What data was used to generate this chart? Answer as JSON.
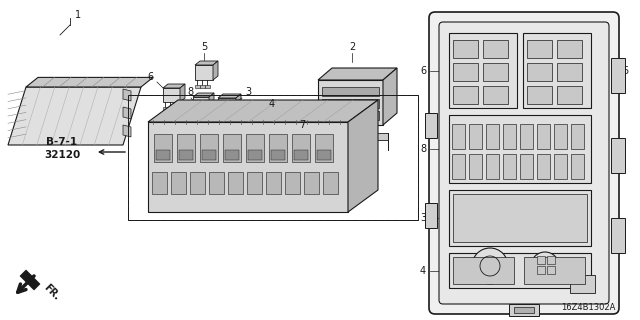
{
  "diagram_code": "16Z4B1302A",
  "background_color": "#ffffff",
  "line_color": "#1a1a1a",
  "figsize": [
    6.4,
    3.2
  ],
  "dpi": 100,
  "gray_fill": "#d8d8d8",
  "gray_mid": "#c0c0c0",
  "gray_light": "#e8e8e8"
}
